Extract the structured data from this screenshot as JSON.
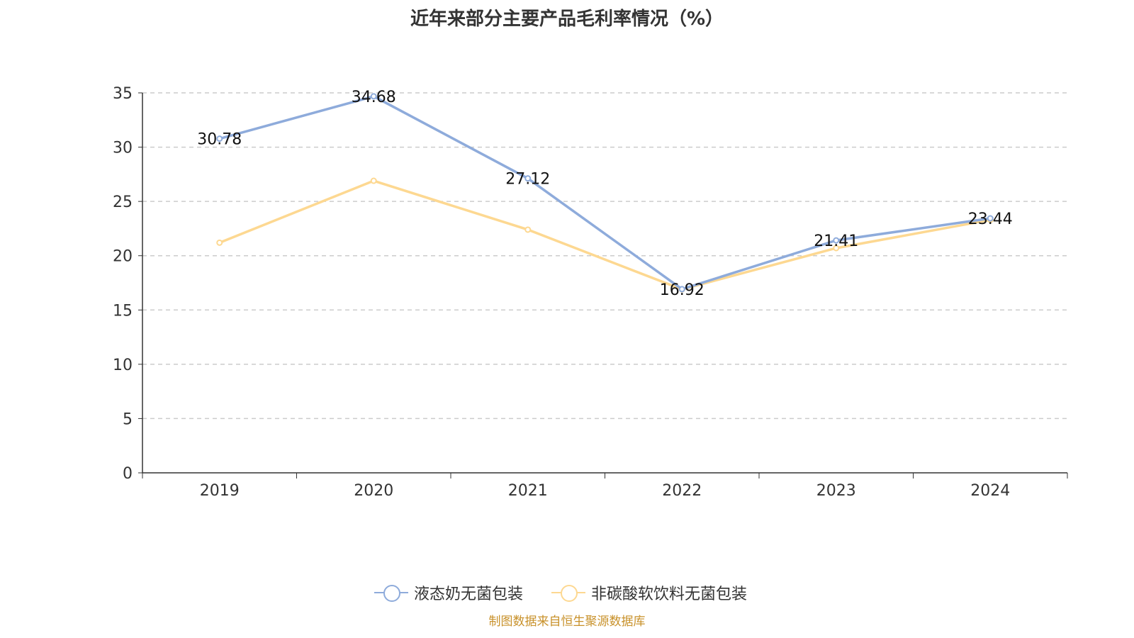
{
  "chart_data": {
    "type": "line",
    "title": "近年来部分主要产品毛利率情况（%）",
    "categories": [
      "2019",
      "2020",
      "2021",
      "2022",
      "2023",
      "2024"
    ],
    "ylim": [
      0,
      35
    ],
    "yticks": [
      0,
      5,
      10,
      15,
      20,
      25,
      30,
      35
    ],
    "grid": true,
    "legend_position": "bottom",
    "series": [
      {
        "name": "液态奶无菌包装",
        "color": "#8eabdb",
        "values": [
          30.78,
          34.68,
          27.12,
          16.92,
          21.41,
          23.44
        ],
        "labels": [
          "30.78",
          "34.68",
          "27.12",
          "16.92",
          "21.41",
          "23.44"
        ]
      },
      {
        "name": "非碳酸软饮料无菌包装",
        "color": "#fdd891",
        "values": [
          21.2,
          26.9,
          22.4,
          16.9,
          20.7,
          23.3
        ],
        "labels": []
      }
    ]
  },
  "source": "制图数据来自恒生聚源数据库"
}
